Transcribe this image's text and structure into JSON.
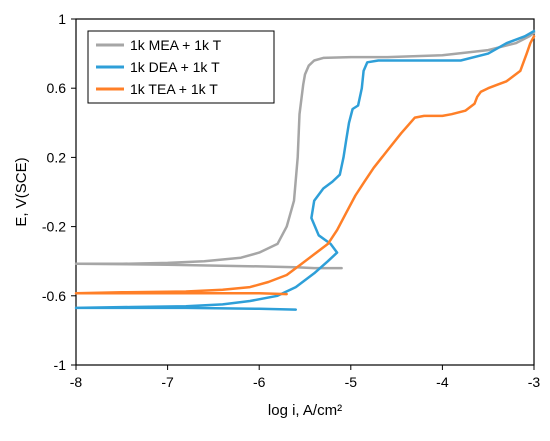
{
  "chart_data": {
    "type": "line",
    "title": "",
    "xlabel": "log i, A/cm²",
    "ylabel": "E, V(SCE)",
    "xlim": [
      -8,
      -3
    ],
    "ylim": [
      -1,
      1
    ],
    "x_ticks": [
      "-8",
      "-7",
      "-6",
      "-5",
      "-4",
      "-3"
    ],
    "y_ticks": [
      "-1",
      "-0.6",
      "-0.2",
      "0.2",
      "0.6",
      "1"
    ],
    "x_tick_values": [
      -8,
      -7,
      -6,
      -5,
      -4,
      -3
    ],
    "y_tick_values": [
      -1,
      -0.6,
      -0.2,
      0.2,
      0.6,
      1
    ],
    "grid": false,
    "legend_position": "top-left",
    "series": [
      {
        "name": "1k MEA + 1k T",
        "color": "#a6a6a6",
        "x": [
          -5.1,
          -5.4,
          -5.6,
          -6.0,
          -7.0,
          -8.0,
          -7.5,
          -7.0,
          -6.6,
          -6.2,
          -6.0,
          -5.8,
          -5.7,
          -5.62,
          -5.58,
          -5.56,
          -5.52,
          -5.5,
          -5.46,
          -5.4,
          -5.3,
          -5.0,
          -4.6,
          -4.0,
          -3.5,
          -3.2,
          -3.05,
          -3.0
        ],
        "y": [
          -0.44,
          -0.44,
          -0.435,
          -0.43,
          -0.42,
          -0.415,
          -0.415,
          -0.41,
          -0.4,
          -0.38,
          -0.35,
          -0.3,
          -0.2,
          -0.05,
          0.2,
          0.45,
          0.62,
          0.68,
          0.73,
          0.76,
          0.775,
          0.78,
          0.78,
          0.79,
          0.82,
          0.86,
          0.9,
          0.92
        ]
      },
      {
        "name": "1k DEA + 1k T",
        "color": "#2e9fd8",
        "x": [
          -5.6,
          -6.0,
          -6.8,
          -7.6,
          -8.0,
          -7.4,
          -6.8,
          -6.4,
          -6.1,
          -5.8,
          -5.6,
          -5.4,
          -5.25,
          -5.15,
          -5.22,
          -5.35,
          -5.43,
          -5.4,
          -5.3,
          -5.2,
          -5.12,
          -5.08,
          -5.05,
          -5.02,
          -4.98,
          -4.92,
          -4.88,
          -4.86,
          -4.82,
          -4.7,
          -4.3,
          -3.8,
          -3.5,
          -3.3,
          -3.1,
          -3.0
        ],
        "y": [
          -0.68,
          -0.675,
          -0.67,
          -0.67,
          -0.67,
          -0.665,
          -0.66,
          -0.65,
          -0.63,
          -0.6,
          -0.55,
          -0.47,
          -0.4,
          -0.35,
          -0.3,
          -0.25,
          -0.15,
          -0.05,
          0.02,
          0.06,
          0.1,
          0.2,
          0.3,
          0.4,
          0.48,
          0.5,
          0.6,
          0.7,
          0.75,
          0.76,
          0.76,
          0.76,
          0.8,
          0.86,
          0.9,
          0.93
        ]
      },
      {
        "name": "1k TEA + 1k T",
        "color": "#ff7f27",
        "x": [
          -5.7,
          -6.0,
          -7.0,
          -8.0,
          -7.5,
          -6.8,
          -6.4,
          -6.1,
          -5.9,
          -5.7,
          -5.55,
          -5.4,
          -5.25,
          -5.15,
          -5.05,
          -4.95,
          -4.85,
          -4.75,
          -4.6,
          -4.45,
          -4.3,
          -4.2,
          -4.1,
          -4.0,
          -3.9,
          -3.75,
          -3.65,
          -3.62,
          -3.58,
          -3.5,
          -3.4,
          -3.3,
          -3.15,
          -3.08,
          -3.04,
          -3.0
        ],
        "y": [
          -0.59,
          -0.585,
          -0.585,
          -0.585,
          -0.58,
          -0.575,
          -0.565,
          -0.55,
          -0.52,
          -0.48,
          -0.42,
          -0.36,
          -0.3,
          -0.22,
          -0.12,
          -0.02,
          0.06,
          0.14,
          0.24,
          0.34,
          0.43,
          0.44,
          0.44,
          0.44,
          0.45,
          0.47,
          0.51,
          0.55,
          0.58,
          0.6,
          0.62,
          0.64,
          0.7,
          0.8,
          0.86,
          0.9
        ]
      }
    ]
  }
}
